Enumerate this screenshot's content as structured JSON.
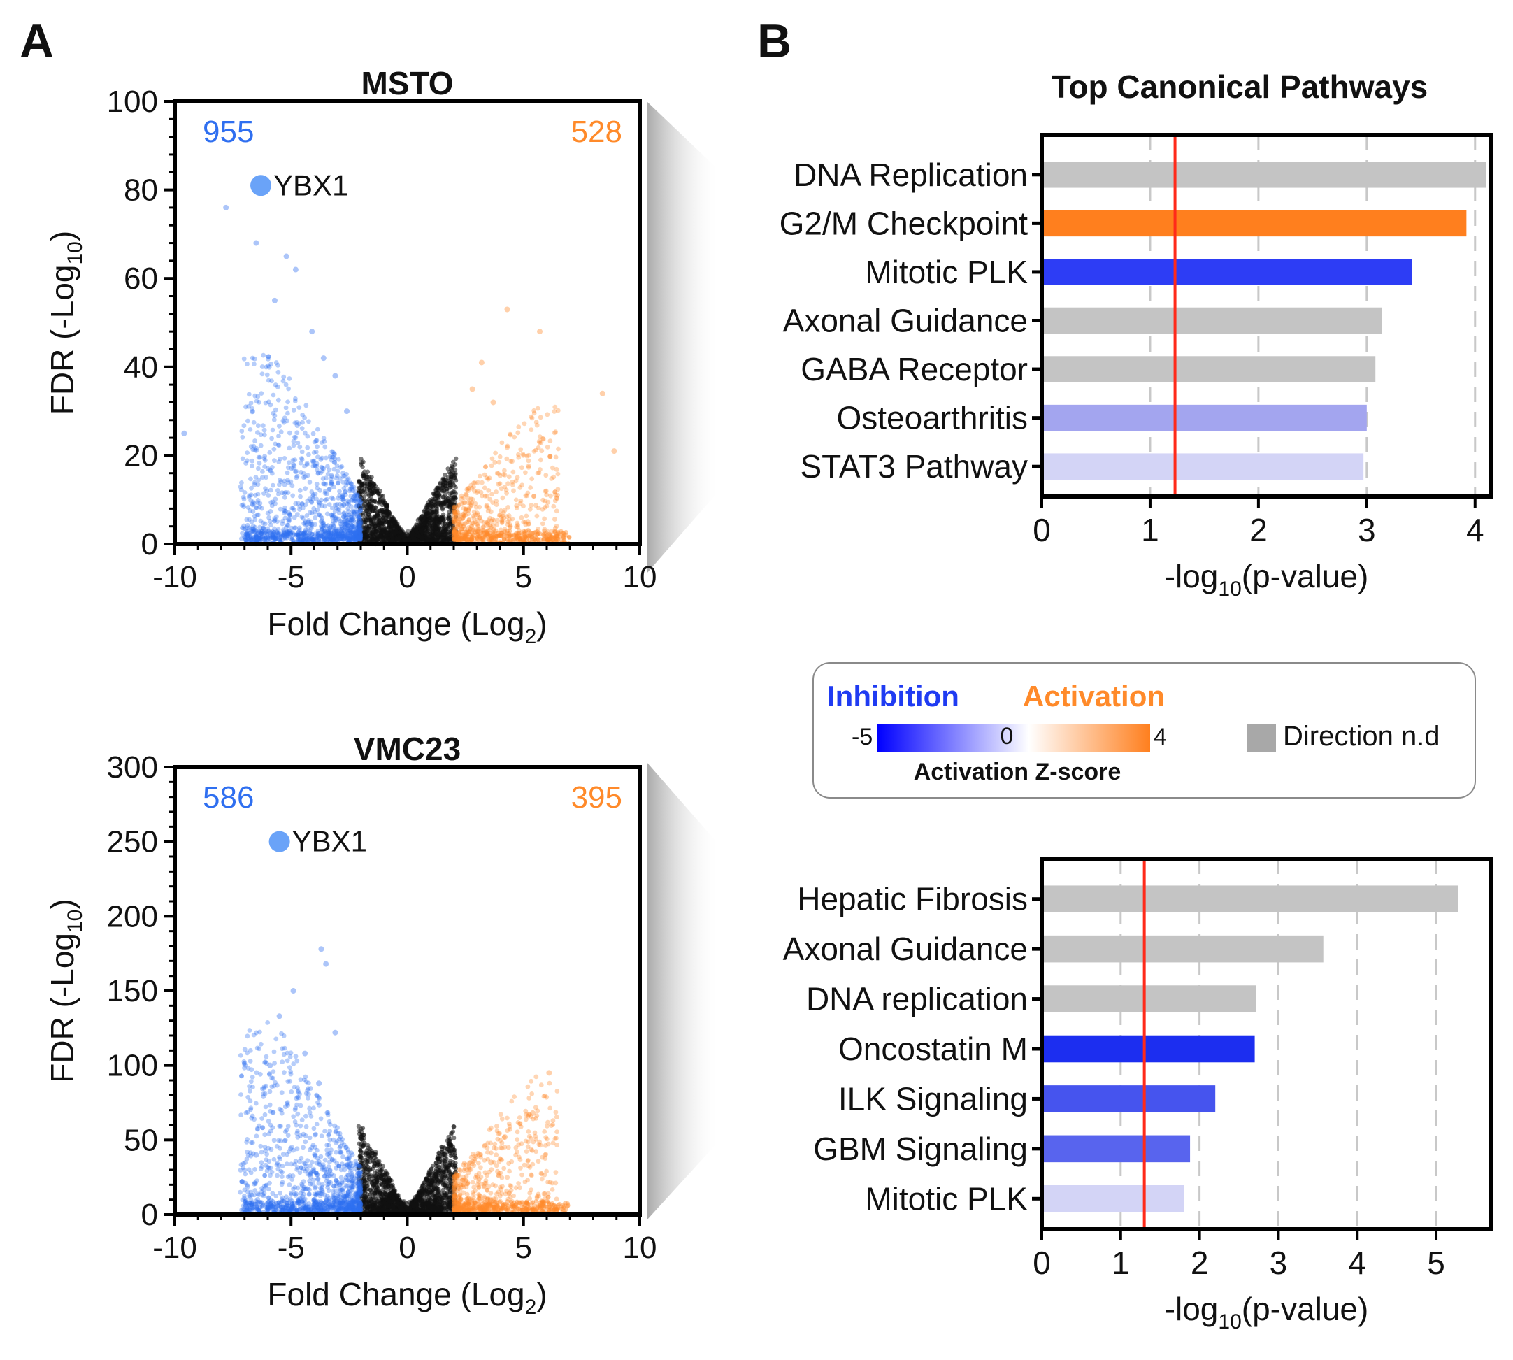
{
  "panel_labels": {
    "a": "A",
    "b": "B"
  },
  "colors": {
    "inhibition_blue": "#1f5cff",
    "volcano_blue": "#2f6ff0",
    "volcano_orange": "#ff8a2a",
    "bar_gray": "#c4c4c4",
    "bar_orange": "#ff7f1e",
    "threshold_red": "#ff2a1a"
  },
  "legend": {
    "inhibition": "Inhibition",
    "activation": "Activation",
    "min_label": "-5",
    "zero_label": "0",
    "max_label": "4",
    "colorbar_title": "Activation Z-score",
    "direction_nd": "Direction n.d"
  },
  "chart_data": [
    {
      "id": "volcano_msto",
      "type": "scatter",
      "title": "MSTO",
      "xlabel_main": "Fold Change (Log",
      "xlabel_sub": "2",
      "xlabel_end": ")",
      "ylabel_main": "FDR (-Log",
      "ylabel_sub": "10",
      "ylabel_end": ")",
      "xlim": [
        -10,
        10
      ],
      "ylim": [
        0,
        100
      ],
      "xticks": [
        "-10",
        "-5",
        "0",
        "5",
        "10"
      ],
      "yticks": [
        "0",
        "20",
        "40",
        "60",
        "80",
        "100"
      ],
      "down_count": "955",
      "up_count": "528",
      "highlight": {
        "label": "YBX1",
        "x": -6.3,
        "y": 81
      },
      "down_sample": [
        [
          -9.6,
          25
        ],
        [
          -7.8,
          76
        ],
        [
          -6.5,
          68
        ],
        [
          -5.2,
          65
        ],
        [
          -4.8,
          62
        ],
        [
          -3.6,
          42
        ],
        [
          -3.1,
          38
        ],
        [
          -2.6,
          30
        ],
        [
          -4.1,
          48
        ],
        [
          -5.7,
          55
        ]
      ],
      "up_sample": [
        [
          4.3,
          53
        ],
        [
          5.7,
          48
        ],
        [
          8.4,
          34
        ],
        [
          8.9,
          21
        ],
        [
          3.2,
          41
        ],
        [
          2.8,
          35
        ],
        [
          3.7,
          32
        ]
      ]
    },
    {
      "id": "volcano_vmc23",
      "type": "scatter",
      "title": "VMC23",
      "xlabel_main": "Fold Change (Log",
      "xlabel_sub": "2",
      "xlabel_end": ")",
      "ylabel_main": "FDR (-Log",
      "ylabel_sub": "10",
      "ylabel_end": ")",
      "xlim": [
        -10,
        10
      ],
      "ylim": [
        0,
        300
      ],
      "xticks": [
        "-10",
        "-5",
        "0",
        "5",
        "10"
      ],
      "yticks": [
        "0",
        "50",
        "100",
        "150",
        "200",
        "250",
        "300"
      ],
      "down_count": "586",
      "up_count": "395",
      "highlight": {
        "label": "YBX1",
        "x": -5.5,
        "y": 250
      },
      "down_sample": [
        [
          -3.7,
          178
        ],
        [
          -3.5,
          168
        ],
        [
          -4.9,
          150
        ],
        [
          -5.5,
          133
        ],
        [
          -3.1,
          122
        ],
        [
          -4.4,
          108
        ],
        [
          -5.9,
          100
        ],
        [
          -3.8,
          88
        ],
        [
          -6.5,
          40
        ],
        [
          -7.1,
          22
        ]
      ],
      "up_sample": [
        [
          6.1,
          95
        ],
        [
          5.4,
          68
        ],
        [
          4.2,
          52
        ],
        [
          3.1,
          40
        ],
        [
          3.6,
          35
        ]
      ]
    },
    {
      "id": "pathways_msto",
      "type": "bar",
      "orientation": "horizontal",
      "title": "Top Canonical Pathways",
      "xlabel_main": "-log",
      "xlabel_sub": "10",
      "xlabel_end": "(p-value)",
      "xlim": [
        0,
        4.15
      ],
      "xticks": [
        "0",
        "1",
        "2",
        "3",
        "4"
      ],
      "threshold": 1.23,
      "categories": [
        "DNA Replication",
        "G2/M Checkpoint",
        "Mitotic PLK",
        "Axonal Guidance",
        "GABA Receptor",
        "Osteoarthritis",
        "STAT3 Pathway"
      ],
      "values": [
        4.1,
        3.92,
        3.42,
        3.14,
        3.08,
        3.0,
        2.97
      ],
      "colors": [
        "#c4c4c4",
        "#ff7f1e",
        "#2d3df5",
        "#c4c4c4",
        "#c4c4c4",
        "#a3a5ef",
        "#d3d4f6"
      ]
    },
    {
      "id": "pathways_vmc23",
      "type": "bar",
      "orientation": "horizontal",
      "title": "",
      "xlabel_main": "-log",
      "xlabel_sub": "10",
      "xlabel_end": "(p-value)",
      "xlim": [
        0,
        5.7
      ],
      "xticks": [
        "0",
        "1",
        "2",
        "3",
        "4",
        "5"
      ],
      "threshold": 1.3,
      "categories": [
        "Hepatic Fibrosis",
        "Axonal Guidance",
        "DNA replication",
        "Oncostatin M",
        "ILK Signaling",
        "GBM Signaling",
        "Mitotic PLK"
      ],
      "values": [
        5.28,
        3.57,
        2.72,
        2.7,
        2.2,
        1.88,
        1.8
      ],
      "colors": [
        "#c4c4c4",
        "#c4c4c4",
        "#c4c4c4",
        "#1c2ef0",
        "#4654ee",
        "#5864ee",
        "#d3d4f6"
      ]
    }
  ]
}
